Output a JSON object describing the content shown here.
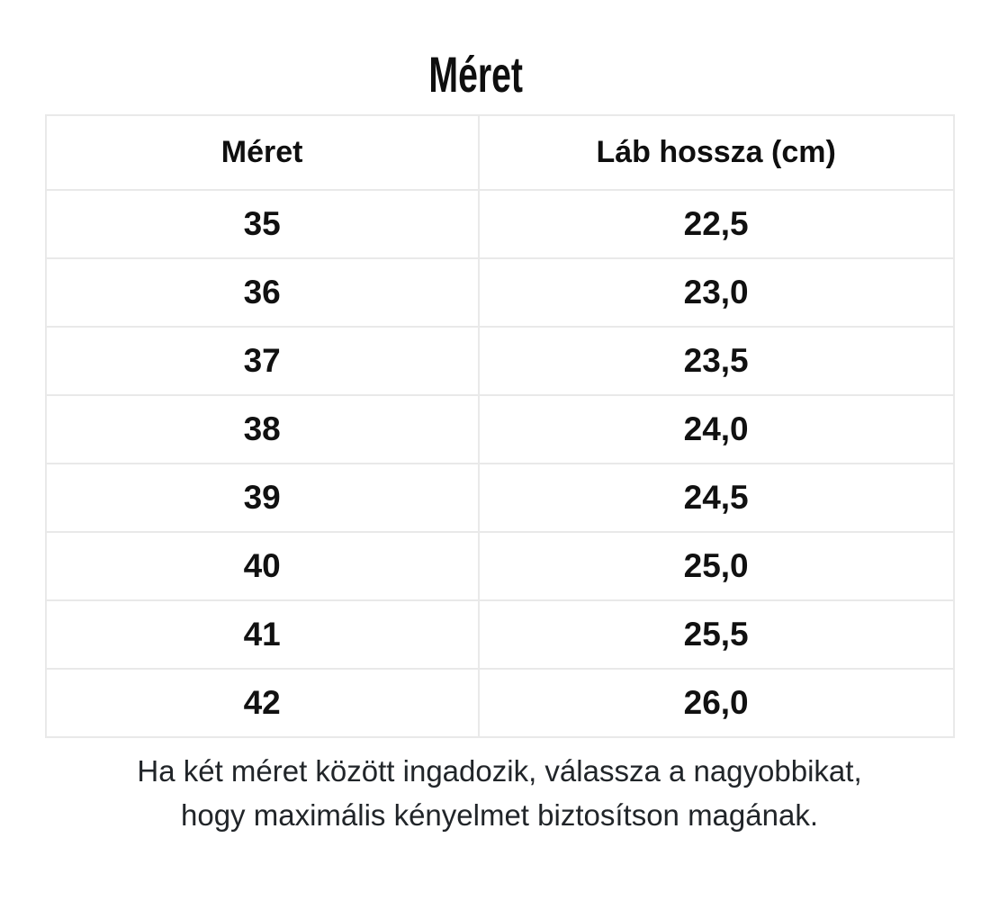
{
  "section": {
    "title": "Méret"
  },
  "size_table": {
    "headers": {
      "size": "Méret",
      "foot_length": "Láb hossza (cm)"
    },
    "rows": [
      {
        "size": "35",
        "foot_length_cm": "22,5"
      },
      {
        "size": "36",
        "foot_length_cm": "23,0"
      },
      {
        "size": "37",
        "foot_length_cm": "23,5"
      },
      {
        "size": "38",
        "foot_length_cm": "24,0"
      },
      {
        "size": "39",
        "foot_length_cm": "24,5"
      },
      {
        "size": "40",
        "foot_length_cm": "25,0"
      },
      {
        "size": "41",
        "foot_length_cm": "25,5"
      },
      {
        "size": "42",
        "foot_length_cm": "26,0"
      }
    ]
  },
  "note": {
    "line1": "Ha két méret között ingadozik, válassza a nagyobbikat,",
    "line2": "hogy maximális kényelmet biztosítson magának."
  },
  "colors": {
    "table_border": "#e9e9e9",
    "heading_text": "#0f0f0f",
    "cell_text": "#111111",
    "note_text": "#212529"
  }
}
